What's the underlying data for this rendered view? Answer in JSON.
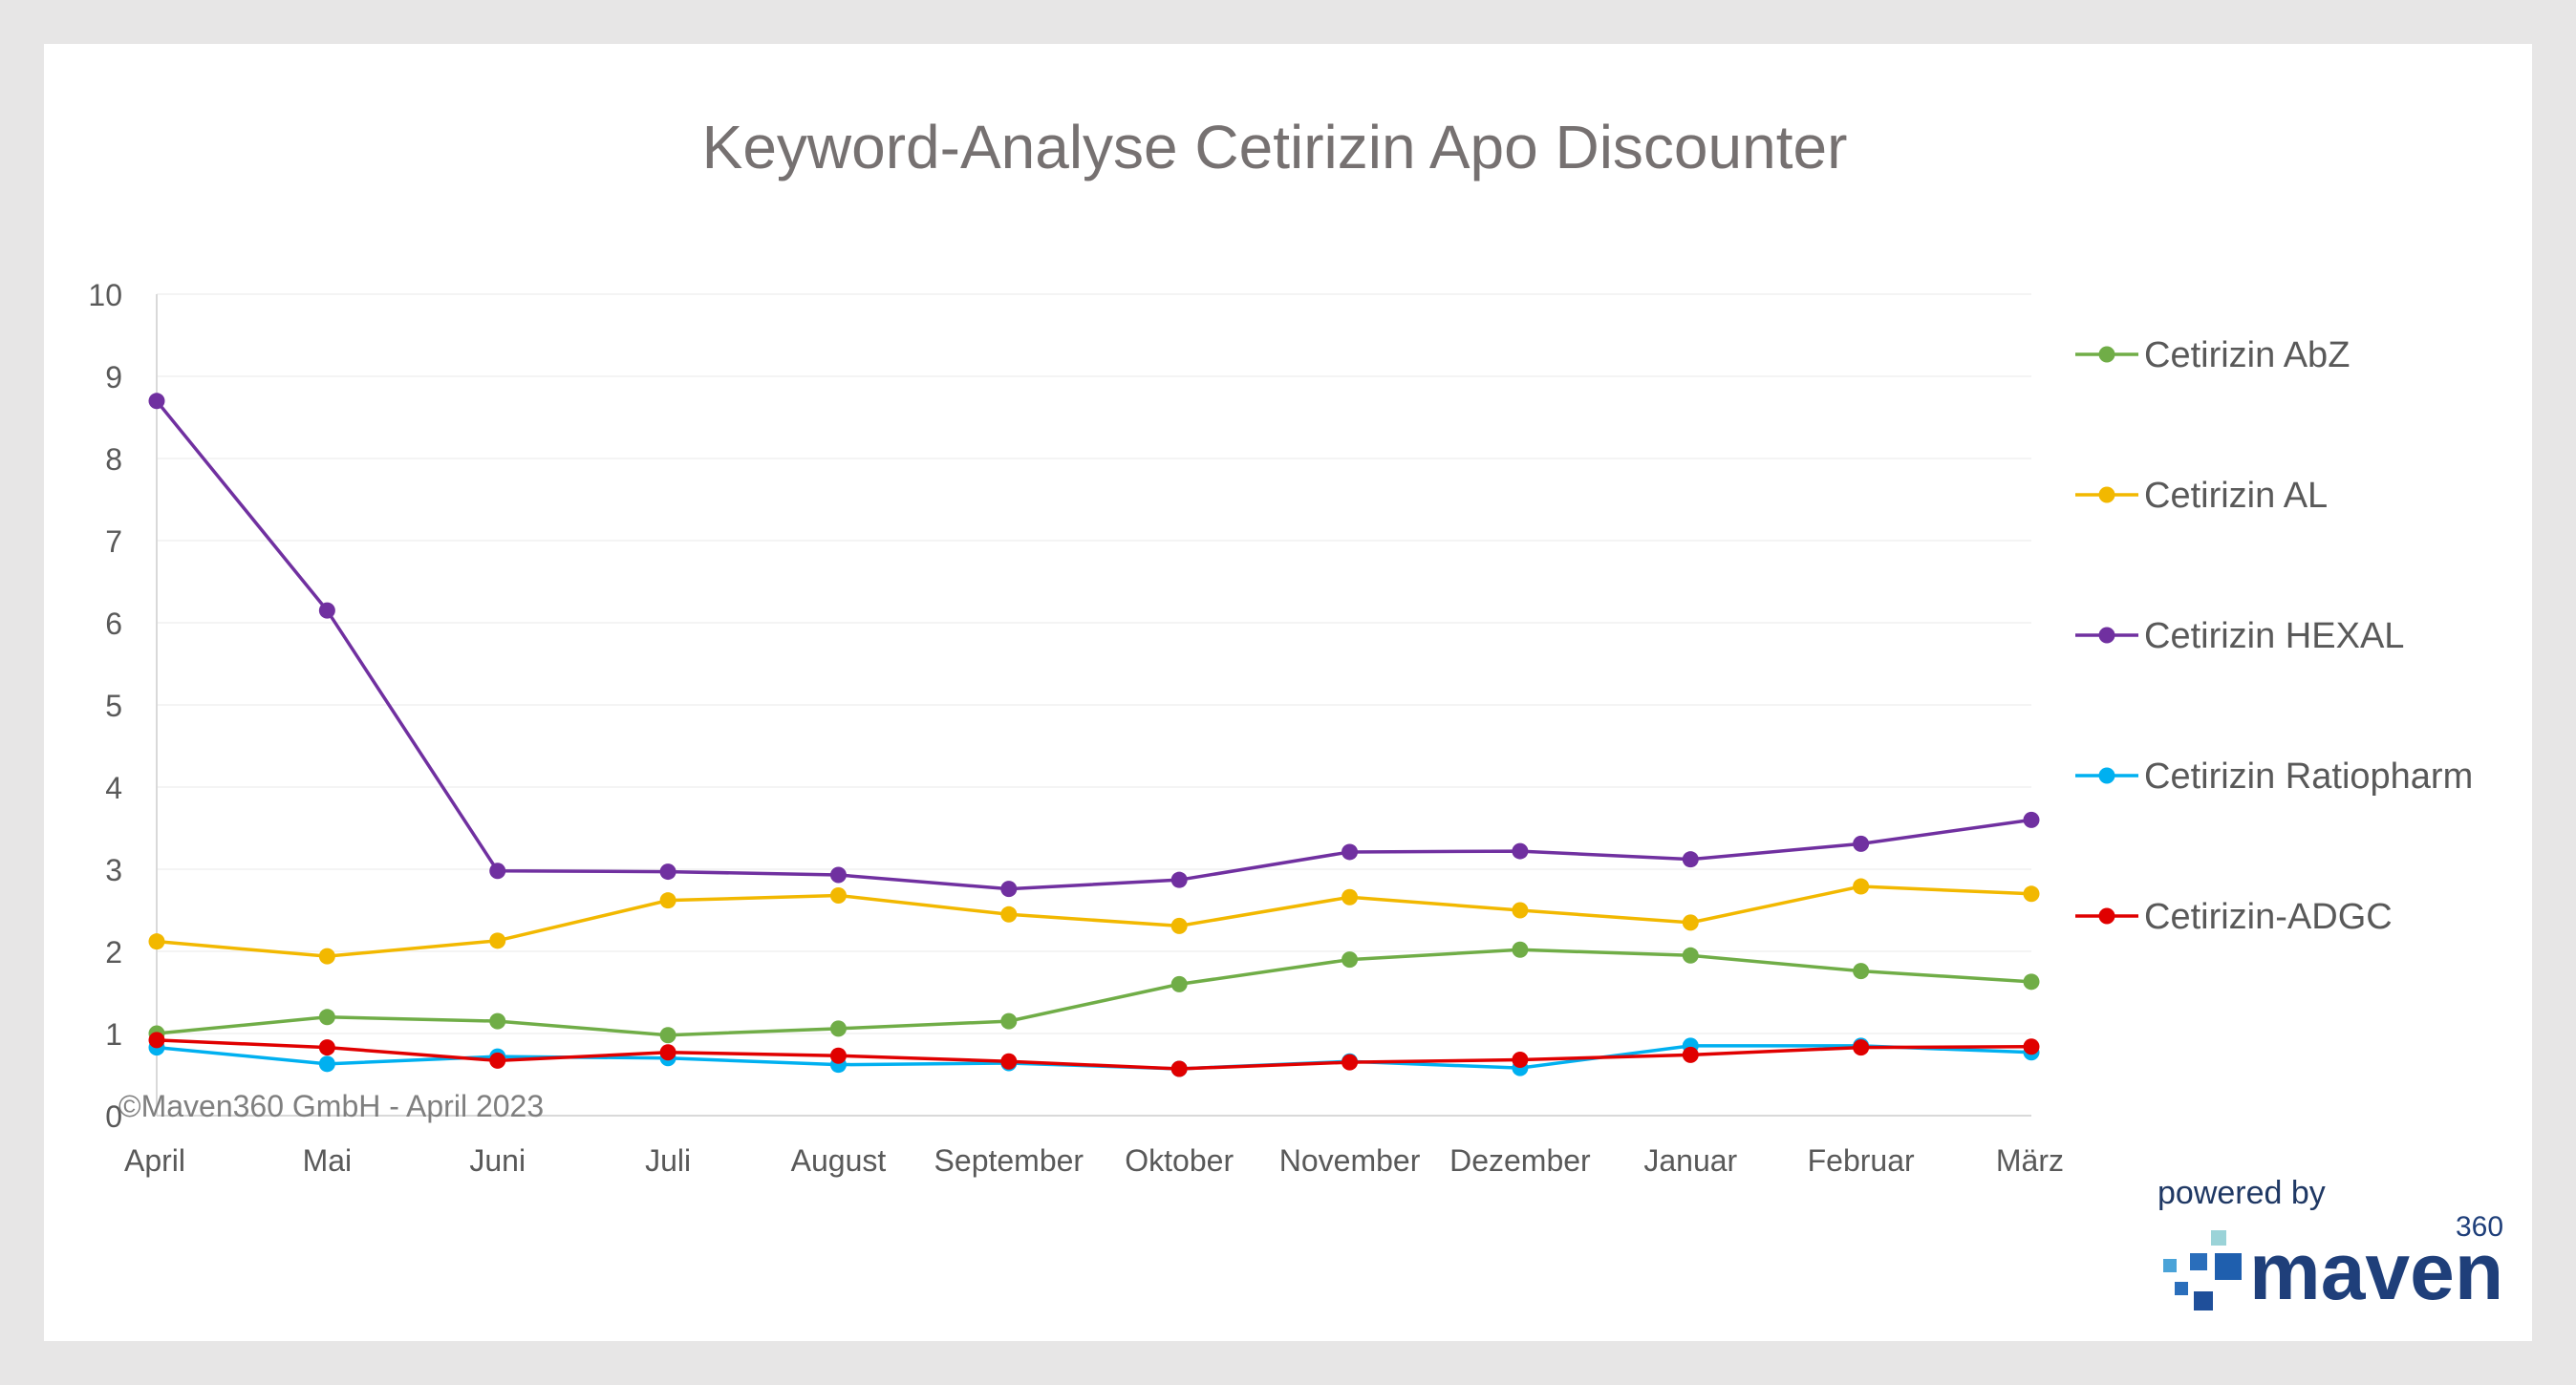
{
  "chart_data": {
    "type": "line",
    "title": "Keyword-Analyse Cetirizin Apo Discounter",
    "categories": [
      "April",
      "Mai",
      "Juni",
      "Juli",
      "August",
      "September",
      "Oktober",
      "November",
      "Dezember",
      "Januar",
      "Februar",
      "März"
    ],
    "ylim": [
      0,
      10
    ],
    "yticks": [
      "0",
      "1",
      "2",
      "3",
      "4",
      "5",
      "6",
      "7",
      "8",
      "9",
      "10"
    ],
    "grid": true,
    "legend_position": "right",
    "series": [
      {
        "name": "Cetirizin AbZ",
        "color": "#70ad47",
        "values": [
          1.0,
          1.2,
          1.15,
          0.98,
          1.06,
          1.15,
          1.6,
          1.9,
          2.02,
          1.95,
          1.76,
          1.63
        ]
      },
      {
        "name": "Cetirizin AL",
        "color": "#f2b800",
        "values": [
          2.12,
          1.94,
          2.13,
          2.62,
          2.68,
          2.45,
          2.31,
          2.66,
          2.5,
          2.35,
          2.79,
          2.7
        ]
      },
      {
        "name": "Cetirizin HEXAL",
        "color": "#7030a0",
        "values": [
          8.7,
          6.15,
          2.98,
          2.97,
          2.93,
          2.76,
          2.87,
          3.21,
          3.22,
          3.12,
          3.31,
          3.6
        ]
      },
      {
        "name": "Cetirizin Ratiopharm",
        "color": "#00b0f0",
        "values": [
          0.83,
          0.63,
          0.72,
          0.7,
          0.62,
          0.64,
          0.57,
          0.66,
          0.58,
          0.85,
          0.85,
          0.77
        ]
      },
      {
        "name": "Cetirizin-ADGC",
        "color": "#e00000",
        "values": [
          0.92,
          0.83,
          0.67,
          0.77,
          0.73,
          0.66,
          0.57,
          0.65,
          0.68,
          0.74,
          0.83,
          0.84
        ]
      }
    ]
  },
  "footer": {
    "copyright": "©Maven360 GmbH -  April 2023"
  },
  "branding": {
    "powered_by": "powered by",
    "logo_word": "maven",
    "logo_sup": "360"
  }
}
